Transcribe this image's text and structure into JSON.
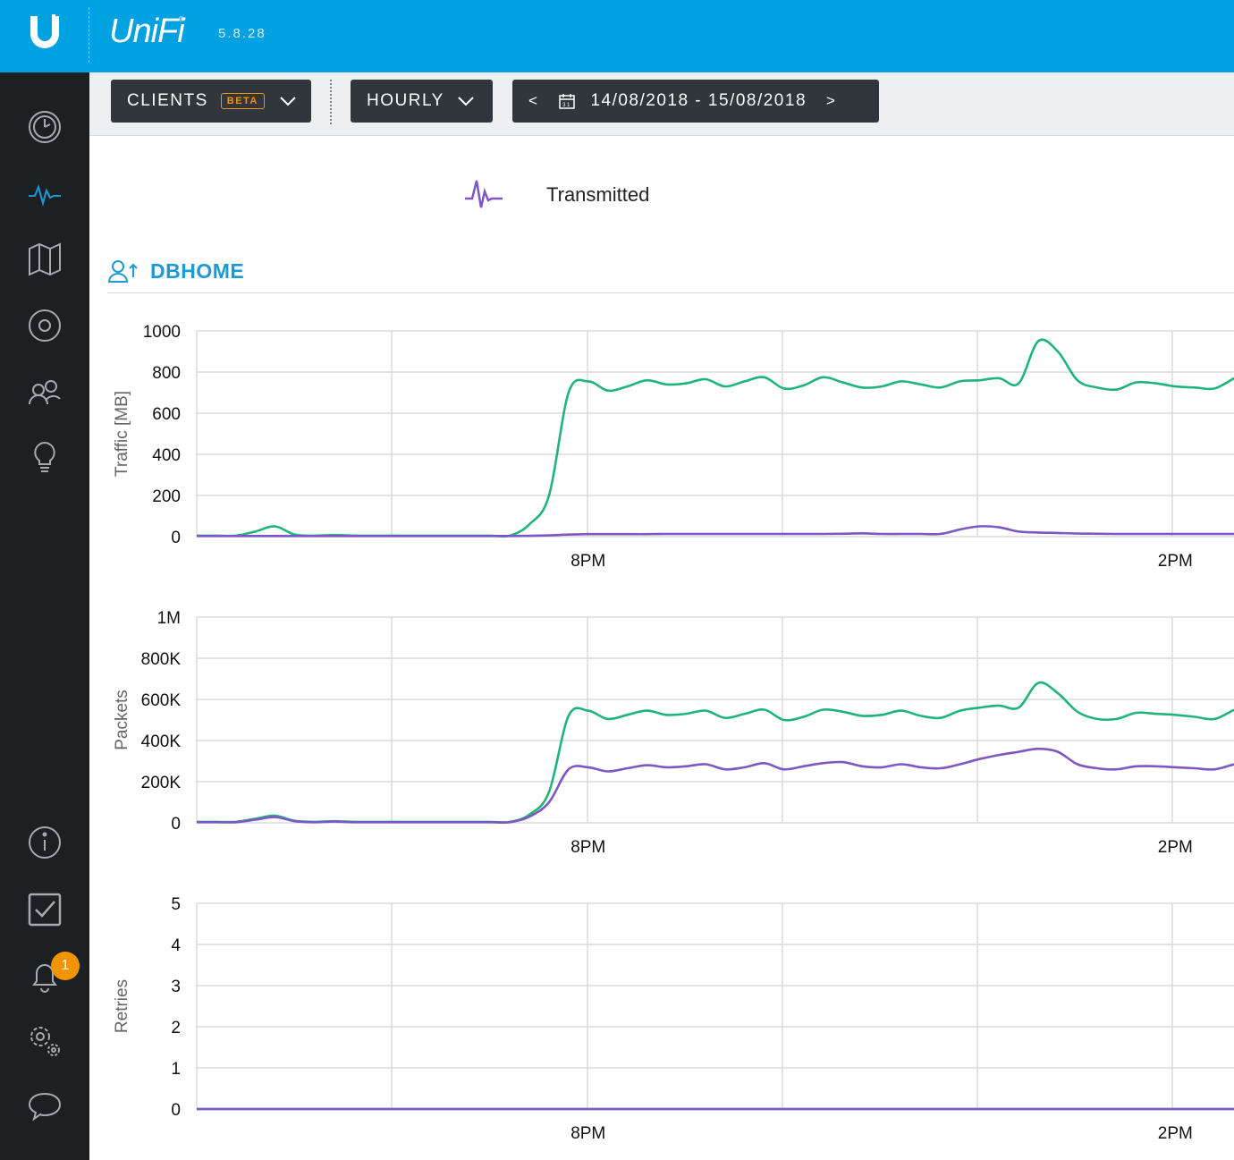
{
  "app": {
    "brand": "UniFi",
    "brand_mark": "®",
    "version": "5.8.28"
  },
  "sidebar": {
    "items": [
      {
        "name": "dashboard-icon",
        "active": false
      },
      {
        "name": "statistics-icon",
        "active": true
      },
      {
        "name": "map-icon",
        "active": false
      },
      {
        "name": "devices-icon",
        "active": false
      },
      {
        "name": "clients-icon",
        "active": false
      },
      {
        "name": "insights-icon",
        "active": false
      },
      {
        "name": "info-icon",
        "active": false
      },
      {
        "name": "tasks-icon",
        "active": false
      },
      {
        "name": "alerts-icon",
        "active": false
      },
      {
        "name": "settings-icon",
        "active": false
      },
      {
        "name": "chat-icon",
        "active": false
      }
    ],
    "alerts_badge": "1"
  },
  "toolbar": {
    "clients_label": "CLIENTS",
    "beta_label": "BETA",
    "interval_label": "HOURLY",
    "prev_label": "<",
    "next_label": ">",
    "date_range": "14/08/2018 - 15/08/2018",
    "calendar_day": "31"
  },
  "legend": {
    "transmitted": "Transmitted"
  },
  "section": {
    "title": "DBHOME"
  },
  "colors": {
    "accent": "#00a1e0",
    "received": "#1fb57a",
    "transmitted": "#7e57c2",
    "sidebar": "#1c2023",
    "badge": "#f29400"
  },
  "chart_data": [
    {
      "type": "line",
      "ylabel": "Traffic [MB]",
      "ylim": [
        0,
        1000
      ],
      "yticks": [
        "0",
        "200",
        "400",
        "600",
        "800",
        "1000"
      ],
      "xlim": [
        0,
        26.5
      ],
      "xticks": [
        {
          "x": 10,
          "label": "8PM"
        },
        {
          "x": 25,
          "label": "2PM"
        }
      ],
      "grid": true,
      "x": [
        0,
        0.5,
        1,
        1.5,
        2,
        2.5,
        3,
        3.5,
        4,
        4.5,
        5,
        5.5,
        6,
        6.5,
        7,
        7.5,
        8,
        8.5,
        9,
        9.5,
        10,
        10.5,
        11,
        11.5,
        12,
        12.5,
        13,
        13.5,
        14,
        14.5,
        15,
        15.5,
        16,
        16.5,
        17,
        17.5,
        18,
        18.5,
        19,
        19.5,
        20,
        20.5,
        21,
        21.5,
        22,
        22.5,
        23,
        23.5,
        24,
        24.5,
        25,
        25.5,
        26,
        26.5
      ],
      "series": [
        {
          "values": [
            5,
            5,
            5,
            25,
            50,
            10,
            5,
            8,
            5,
            5,
            5,
            5,
            5,
            5,
            5,
            5,
            5,
            60,
            200,
            700,
            755,
            710,
            730,
            760,
            740,
            745,
            765,
            730,
            755,
            775,
            720,
            735,
            775,
            750,
            725,
            730,
            755,
            740,
            725,
            755,
            760,
            770,
            745,
            950,
            900,
            760,
            725,
            715,
            750,
            745,
            730,
            725,
            720,
            770
          ]
        },
        {
          "values": [
            3,
            3,
            3,
            3,
            3,
            3,
            3,
            3,
            3,
            3,
            3,
            3,
            3,
            3,
            3,
            3,
            3,
            4,
            6,
            10,
            12,
            12,
            12,
            12,
            13,
            13,
            13,
            13,
            13,
            13,
            13,
            13,
            13,
            14,
            16,
            13,
            13,
            13,
            13,
            35,
            50,
            45,
            25,
            20,
            18,
            15,
            14,
            13,
            13,
            13,
            13,
            13,
            13,
            13
          ]
        }
      ]
    },
    {
      "type": "line",
      "ylabel": "Packets",
      "ylim": [
        0,
        1000000
      ],
      "yticks": [
        "0",
        "200K",
        "400K",
        "600K",
        "800K",
        "1M"
      ],
      "xlim": [
        0,
        26.5
      ],
      "xticks": [
        {
          "x": 10,
          "label": "8PM"
        },
        {
          "x": 25,
          "label": "2PM"
        }
      ],
      "grid": true,
      "x": [
        0,
        0.5,
        1,
        1.5,
        2,
        2.5,
        3,
        3.5,
        4,
        4.5,
        5,
        5.5,
        6,
        6.5,
        7,
        7.5,
        8,
        8.5,
        9,
        9.5,
        10,
        10.5,
        11,
        11.5,
        12,
        12.5,
        13,
        13.5,
        14,
        14.5,
        15,
        15.5,
        16,
        16.5,
        17,
        17.5,
        18,
        18.5,
        19,
        19.5,
        20,
        20.5,
        21,
        21.5,
        22,
        22.5,
        23,
        23.5,
        24,
        24.5,
        25,
        25.5,
        26,
        26.5
      ],
      "series": [
        {
          "values": [
            5000,
            5000,
            5000,
            20000,
            35000,
            10000,
            5000,
            8000,
            5000,
            5000,
            5000,
            5000,
            5000,
            5000,
            5000,
            5000,
            5000,
            40000,
            150000,
            520000,
            545000,
            505000,
            525000,
            545000,
            525000,
            530000,
            545000,
            510000,
            530000,
            550000,
            500000,
            515000,
            550000,
            540000,
            520000,
            525000,
            545000,
            520000,
            510000,
            545000,
            560000,
            570000,
            560000,
            680000,
            630000,
            540000,
            505000,
            505000,
            535000,
            530000,
            525000,
            515000,
            505000,
            550000
          ]
        },
        {
          "values": [
            3000,
            3000,
            3000,
            15000,
            28000,
            8000,
            3000,
            6000,
            3000,
            3000,
            3000,
            3000,
            3000,
            3000,
            3000,
            3000,
            3000,
            30000,
            100000,
            260000,
            270000,
            250000,
            265000,
            280000,
            270000,
            275000,
            285000,
            260000,
            270000,
            290000,
            260000,
            275000,
            290000,
            295000,
            275000,
            270000,
            285000,
            270000,
            265000,
            285000,
            310000,
            330000,
            345000,
            360000,
            345000,
            285000,
            265000,
            260000,
            275000,
            275000,
            270000,
            265000,
            260000,
            285000
          ]
        }
      ]
    },
    {
      "type": "line",
      "ylabel": "Retries",
      "ylim": [
        0,
        5
      ],
      "yticks": [
        "0",
        "1",
        "2",
        "3",
        "4",
        "5"
      ],
      "xlim": [
        0,
        26.5
      ],
      "xticks": [
        {
          "x": 10,
          "label": "8PM"
        },
        {
          "x": 25,
          "label": "2PM"
        }
      ],
      "grid": true,
      "x": [
        0,
        26.5
      ],
      "series": [
        {
          "values": [
            0,
            0
          ]
        },
        {
          "values": [
            0,
            0
          ]
        }
      ]
    }
  ]
}
